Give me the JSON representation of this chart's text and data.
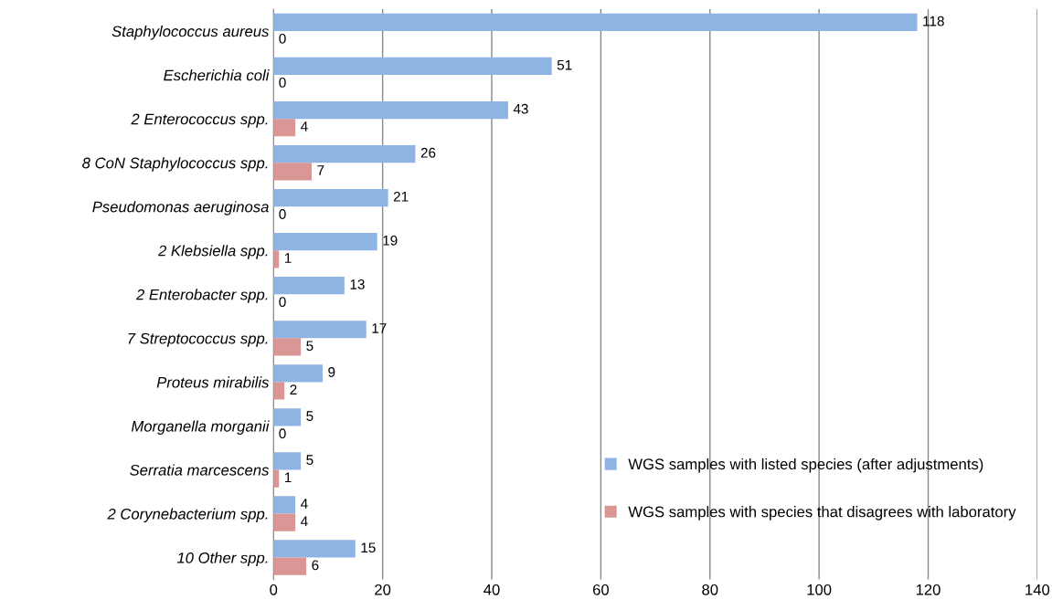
{
  "chart_data": {
    "type": "bar",
    "orientation": "horizontal",
    "categories": [
      "Staphylococcus aureus",
      "Escherichia coli",
      "2 Enterococcus spp.",
      "8 CoN Staphylococcus spp.",
      "Pseudomonas aeruginosa",
      "2 Klebsiella spp.",
      "2 Enterobacter spp.",
      "7 Streptococcus spp.",
      "Proteus mirabilis",
      "Morganella morganii",
      "Serratia marcescens",
      "2 Corynebacterium spp.",
      "10 Other spp."
    ],
    "series": [
      {
        "name": "WGS samples with listed species (after adjustments)",
        "color": "#8eb4e3",
        "values": [
          118,
          51,
          43,
          26,
          21,
          19,
          13,
          17,
          9,
          5,
          5,
          4,
          15
        ]
      },
      {
        "name": "WGS samples with species that disagrees with laboratory",
        "color": "#d99694",
        "values": [
          0,
          0,
          4,
          7,
          0,
          1,
          0,
          5,
          2,
          0,
          1,
          4,
          6
        ]
      }
    ],
    "xlim": [
      0,
      140
    ],
    "xticks": [
      0,
      20,
      40,
      60,
      80,
      100,
      120,
      140
    ],
    "grid": "x",
    "legend": "bottom right",
    "data_labels": true
  }
}
